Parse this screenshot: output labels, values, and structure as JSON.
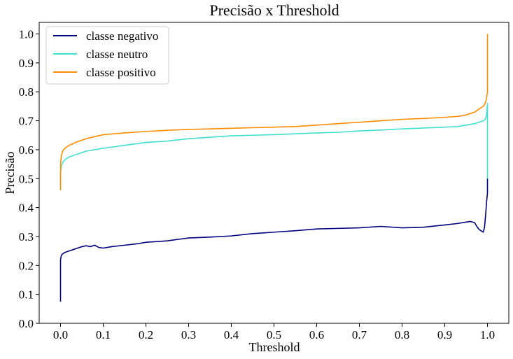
{
  "chart_data": {
    "type": "line",
    "title": "Precisão x Threshold",
    "xlabel": "Threshold",
    "ylabel": "Precisão",
    "xlim": [
      -0.05,
      1.05
    ],
    "ylim": [
      0.0,
      1.04
    ],
    "xticks": [
      0.0,
      0.1,
      0.2,
      0.3,
      0.4,
      0.5,
      0.6,
      0.7,
      0.8,
      0.9,
      1.0
    ],
    "xtick_labels": [
      "0.0",
      "0.1",
      "0.2",
      "0.3",
      "0.4",
      "0.5",
      "0.6",
      "0.7",
      "0.8",
      "0.9",
      "1.0"
    ],
    "yticks": [
      0.0,
      0.1,
      0.2,
      0.3,
      0.4,
      0.5,
      0.6,
      0.7,
      0.8,
      0.9,
      1.0
    ],
    "ytick_labels": [
      "0.0",
      "0.1",
      "0.2",
      "0.3",
      "0.4",
      "0.5",
      "0.6",
      "0.7",
      "0.8",
      "0.9",
      "1.0"
    ],
    "grid": false,
    "legend": "upper left",
    "series": [
      {
        "name": "classe negativo",
        "color": "#000080",
        "x": [
          0.0,
          0.0,
          0.002,
          0.005,
          0.01,
          0.02,
          0.03,
          0.04,
          0.05,
          0.06,
          0.07,
          0.08,
          0.09,
          0.1,
          0.12,
          0.15,
          0.18,
          0.2,
          0.25,
          0.3,
          0.35,
          0.4,
          0.45,
          0.5,
          0.55,
          0.6,
          0.65,
          0.7,
          0.75,
          0.8,
          0.85,
          0.9,
          0.93,
          0.95,
          0.96,
          0.97,
          0.975,
          0.98,
          0.985,
          0.99,
          0.993,
          0.996,
          0.998,
          1.0,
          1.0
        ],
        "y": [
          0.075,
          0.22,
          0.235,
          0.24,
          0.245,
          0.25,
          0.255,
          0.26,
          0.265,
          0.268,
          0.265,
          0.27,
          0.262,
          0.26,
          0.265,
          0.27,
          0.275,
          0.28,
          0.285,
          0.295,
          0.298,
          0.302,
          0.31,
          0.315,
          0.32,
          0.326,
          0.328,
          0.33,
          0.335,
          0.33,
          0.332,
          0.34,
          0.345,
          0.35,
          0.352,
          0.348,
          0.335,
          0.325,
          0.32,
          0.315,
          0.33,
          0.38,
          0.42,
          0.45,
          0.5
        ]
      },
      {
        "name": "classe neutro",
        "color": "#40e0d0",
        "x": [
          0.0,
          0.0,
          0.002,
          0.005,
          0.01,
          0.02,
          0.04,
          0.06,
          0.08,
          0.1,
          0.15,
          0.2,
          0.25,
          0.3,
          0.35,
          0.4,
          0.45,
          0.5,
          0.55,
          0.6,
          0.65,
          0.7,
          0.75,
          0.8,
          0.85,
          0.9,
          0.93,
          0.95,
          0.97,
          0.98,
          0.99,
          0.995,
          0.998,
          1.0,
          1.0,
          1.0
        ],
        "y": [
          0.46,
          0.52,
          0.545,
          0.555,
          0.565,
          0.575,
          0.585,
          0.595,
          0.6,
          0.605,
          0.615,
          0.625,
          0.63,
          0.638,
          0.643,
          0.648,
          0.65,
          0.652,
          0.655,
          0.658,
          0.66,
          0.665,
          0.668,
          0.672,
          0.675,
          0.678,
          0.68,
          0.685,
          0.69,
          0.695,
          0.7,
          0.705,
          0.72,
          0.76,
          0.66,
          0.5
        ]
      },
      {
        "name": "classe positivo",
        "color": "#ff8c00",
        "x": [
          0.0,
          0.0,
          0.002,
          0.005,
          0.01,
          0.02,
          0.04,
          0.06,
          0.08,
          0.1,
          0.15,
          0.2,
          0.25,
          0.3,
          0.35,
          0.4,
          0.45,
          0.5,
          0.55,
          0.6,
          0.65,
          0.7,
          0.75,
          0.8,
          0.85,
          0.9,
          0.93,
          0.95,
          0.97,
          0.98,
          0.99,
          0.995,
          0.998,
          1.0,
          1.0,
          1.0
        ],
        "y": [
          0.46,
          0.55,
          0.58,
          0.595,
          0.605,
          0.615,
          0.628,
          0.638,
          0.645,
          0.652,
          0.658,
          0.663,
          0.667,
          0.67,
          0.672,
          0.674,
          0.676,
          0.678,
          0.68,
          0.685,
          0.69,
          0.695,
          0.7,
          0.705,
          0.708,
          0.712,
          0.715,
          0.72,
          0.73,
          0.74,
          0.75,
          0.76,
          0.78,
          0.8,
          0.85,
          1.0
        ]
      }
    ]
  }
}
